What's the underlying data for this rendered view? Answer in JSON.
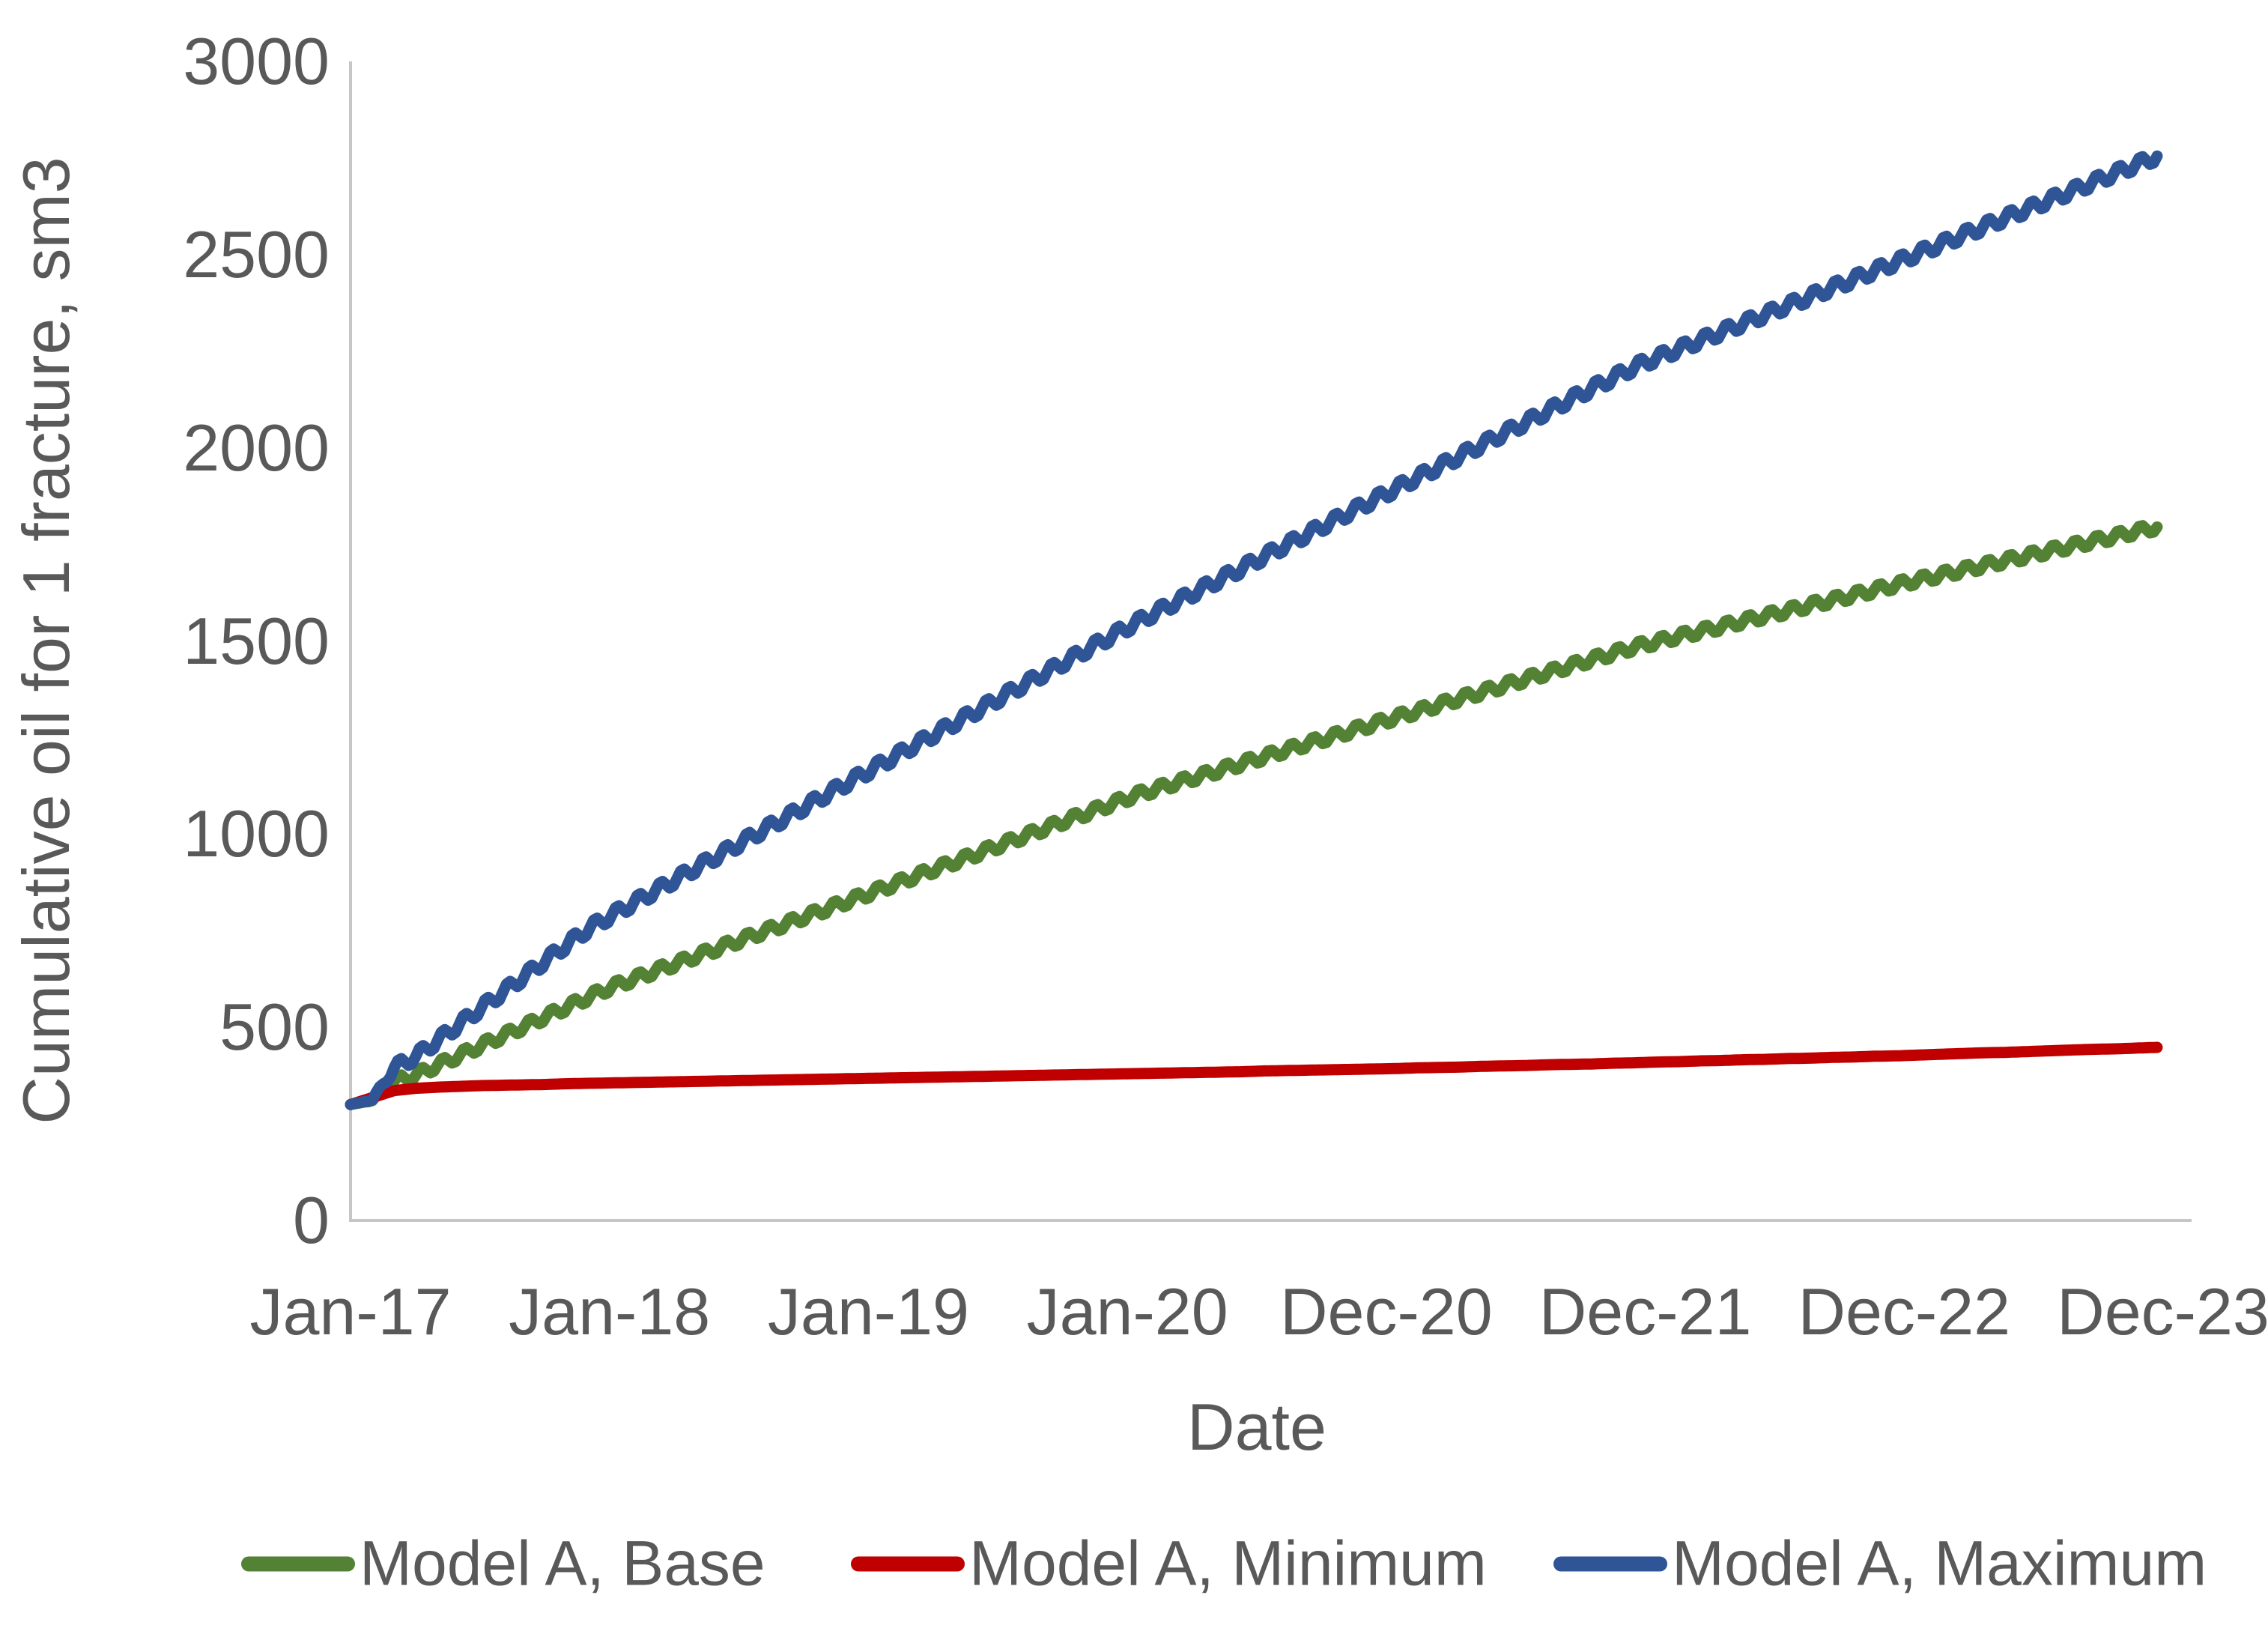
{
  "chart_data": {
    "type": "line",
    "title": "",
    "xlabel": "Date",
    "ylabel": "Cumulative oil for 1 fracture, sm3",
    "ylim": [
      0,
      3000
    ],
    "y_ticks": [
      0,
      500,
      1000,
      1500,
      2000,
      2500,
      3000
    ],
    "x_tick_labels": [
      "Jan-17",
      "Jan-18",
      "Jan-19",
      "Jan-20",
      "Dec-20",
      "Dec-21",
      "Dec-22",
      "Dec-23"
    ],
    "x_tick_month_index": [
      0,
      12,
      24,
      36,
      47,
      59,
      71,
      83
    ],
    "x_unit": "months since Jan-2017, monthly sampling Jan-17 to Dec-23",
    "grid": false,
    "legend_position": "bottom",
    "axis_color": "#C6C6C6",
    "text_color": "#595959",
    "note": "Lines for Base and Maximum show small monthly saw-tooth oscillations around the trend; wiggle_amplitude_sm3 gives the oscillation amplitude.",
    "series": [
      {
        "name": "Model A, Base",
        "color": "#548235",
        "wiggle_amplitude_sm3": 13,
        "monthly_values": [
          300,
          310,
          360,
          376,
          402,
          427,
          453,
          478,
          503,
          529,
          554,
          580,
          605,
          625,
          646,
          666,
          687,
          707,
          728,
          748,
          768,
          789,
          809,
          830,
          850,
          871,
          892,
          913,
          933,
          954,
          975,
          996,
          1017,
          1038,
          1058,
          1079,
          1100,
          1117,
          1134,
          1150,
          1167,
          1184,
          1201,
          1218,
          1235,
          1251,
          1268,
          1285,
          1302,
          1318,
          1335,
          1352,
          1368,
          1385,
          1402,
          1418,
          1435,
          1452,
          1468,
          1485,
          1498,
          1512,
          1525,
          1538,
          1552,
          1565,
          1578,
          1592,
          1605,
          1618,
          1632,
          1645,
          1658,
          1670,
          1683,
          1695,
          1708,
          1720,
          1733,
          1745,
          1758,
          1770,
          1783,
          1795
        ]
      },
      {
        "name": "Model A, Minimum",
        "color": "#C00000",
        "wiggle_amplitude_sm3": 0,
        "monthly_values": [
          300,
          318,
          336,
          342,
          345,
          347,
          349,
          350,
          351,
          352,
          354,
          355,
          356,
          357,
          358,
          359,
          360,
          361,
          362,
          363,
          364,
          365,
          366,
          367,
          368,
          369,
          370,
          371,
          372,
          373,
          374,
          375,
          376,
          377,
          378,
          379,
          380,
          381,
          382,
          383,
          384,
          385,
          387,
          388,
          389,
          390,
          391,
          392,
          393,
          395,
          396,
          397,
          399,
          400,
          401,
          403,
          404,
          405,
          407,
          408,
          410,
          411,
          413,
          414,
          416,
          417,
          419,
          420,
          422,
          423,
          425,
          426,
          428,
          430,
          432,
          434,
          435,
          437,
          439,
          441,
          443,
          444,
          446,
          448
        ]
      },
      {
        "name": "Model A, Maximum",
        "color": "#2F5597",
        "wiggle_amplitude_sm3": 16,
        "monthly_values": [
          300,
          312,
          395,
          425,
          466,
          508,
          550,
          591,
          633,
          675,
          717,
          758,
          790,
          822,
          853,
          885,
          917,
          948,
          980,
          1012,
          1043,
          1075,
          1107,
          1138,
          1170,
          1201,
          1233,
          1264,
          1295,
          1326,
          1358,
          1389,
          1420,
          1451,
          1483,
          1514,
          1545,
          1574,
          1603,
          1632,
          1661,
          1690,
          1720,
          1749,
          1778,
          1807,
          1836,
          1865,
          1894,
          1923,
          1951,
          1980,
          2009,
          2038,
          2066,
          2095,
          2124,
          2153,
          2181,
          2210,
          2233,
          2255,
          2278,
          2300,
          2323,
          2345,
          2368,
          2390,
          2413,
          2435,
          2458,
          2480,
          2503,
          2526,
          2549,
          2572,
          2595,
          2617,
          2640,
          2663,
          2686,
          2709,
          2732,
          2755
        ]
      }
    ]
  }
}
